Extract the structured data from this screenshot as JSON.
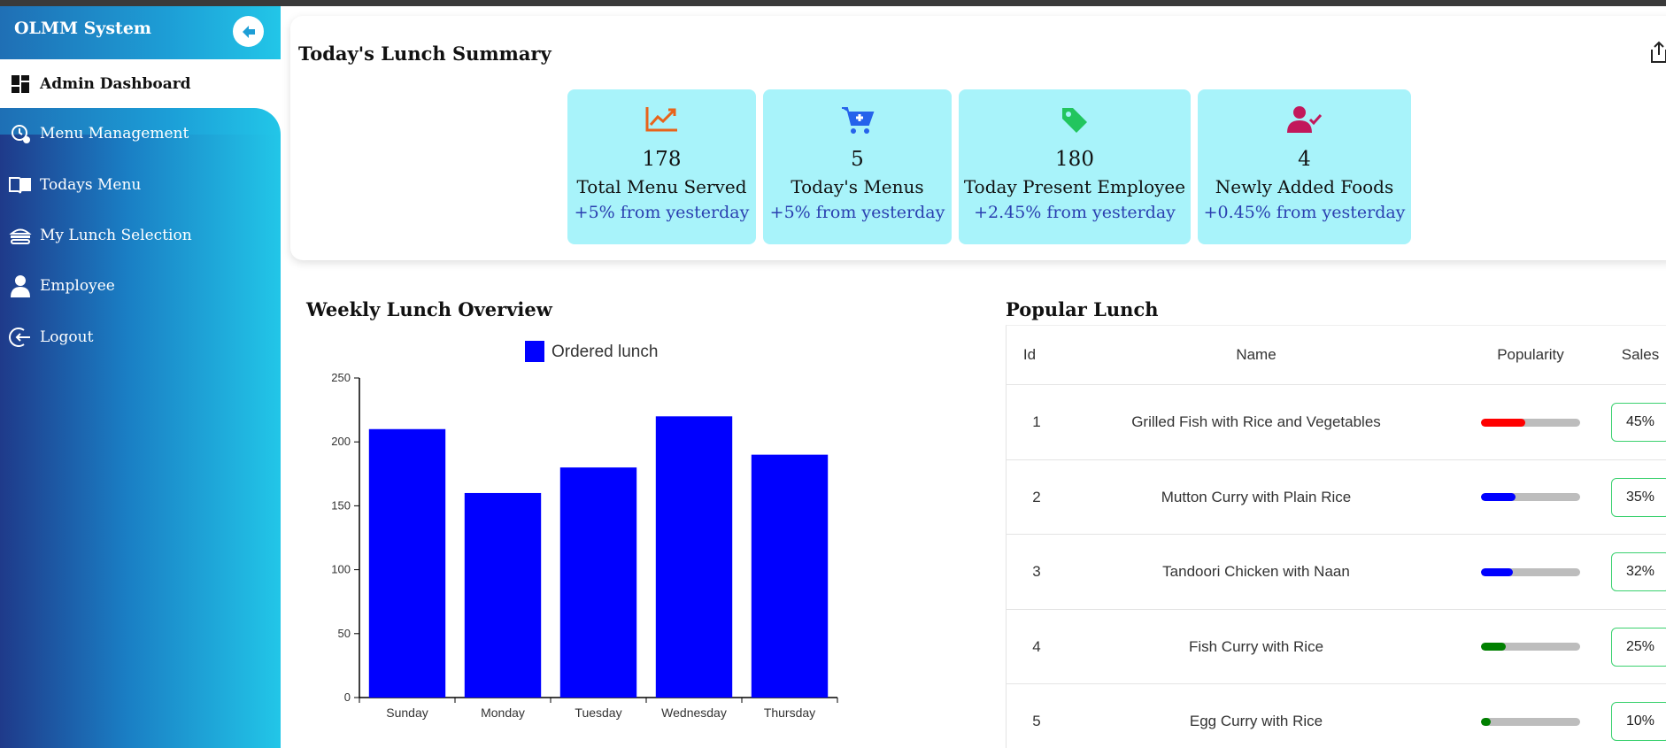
{
  "app": {
    "title": "OLMM System"
  },
  "sidebar": {
    "active": {
      "label": "Admin Dashboard",
      "icon": "dashboard-icon"
    },
    "items": [
      {
        "label": "Menu Management",
        "icon": "menu-settings-icon"
      },
      {
        "label": "Todays Menu",
        "icon": "book-icon"
      },
      {
        "label": "My Lunch Selection",
        "icon": "burger-icon"
      },
      {
        "label": "Employee",
        "icon": "person-icon"
      },
      {
        "label": "Logout",
        "icon": "logout-icon"
      }
    ]
  },
  "summary": {
    "title": "Today's Lunch Summary",
    "stats": [
      {
        "value": "178",
        "label": "Total Menu Served",
        "change": "+5% from yesterday",
        "icon": "trending-up-icon",
        "color": "#e8631a"
      },
      {
        "value": "5",
        "label": "Today's Menus",
        "change": "+5% from yesterday",
        "icon": "cart-plus-icon",
        "color": "#2563eb"
      },
      {
        "value": "180",
        "label": "Today Present Employee",
        "change": "+2.45% from yesterday",
        "icon": "tag-icon",
        "color": "#22c55e"
      },
      {
        "value": "4",
        "label": "Newly Added Foods",
        "change": "+0.45% from yesterday",
        "icon": "user-check-icon",
        "color": "#c2185b"
      }
    ]
  },
  "weekly": {
    "title": "Weekly Lunch Overview"
  },
  "chart_data": {
    "type": "bar",
    "categories": [
      "Sunday",
      "Monday",
      "Tuesday",
      "Wednesday",
      "Thursday"
    ],
    "series": [
      {
        "name": "Ordered lunch",
        "values": [
          210,
          160,
          180,
          220,
          190
        ],
        "color": "#0000ff"
      }
    ],
    "ylim": [
      0,
      250
    ],
    "yticks": [
      0,
      50,
      100,
      150,
      200,
      250
    ],
    "legend": "top"
  },
  "popular": {
    "title": "Popular Lunch",
    "headers": {
      "id": "Id",
      "name": "Name",
      "popularity": "Popularity",
      "sales": "Sales"
    },
    "rows": [
      {
        "id": "1",
        "name": "Grilled Fish with Rice and Vegetables",
        "sales": "45%",
        "popularity": 0.45,
        "color": "#ff0000"
      },
      {
        "id": "2",
        "name": "Mutton Curry with Plain Rice",
        "sales": "35%",
        "popularity": 0.35,
        "color": "#0000ff"
      },
      {
        "id": "3",
        "name": "Tandoori Chicken with Naan",
        "sales": "32%",
        "popularity": 0.32,
        "color": "#0000ff"
      },
      {
        "id": "4",
        "name": "Fish Curry with Rice",
        "sales": "25%",
        "popularity": 0.25,
        "color": "#008000"
      },
      {
        "id": "5",
        "name": "Egg Curry with Rice",
        "sales": "10%",
        "popularity": 0.1,
        "color": "#008000"
      }
    ]
  }
}
